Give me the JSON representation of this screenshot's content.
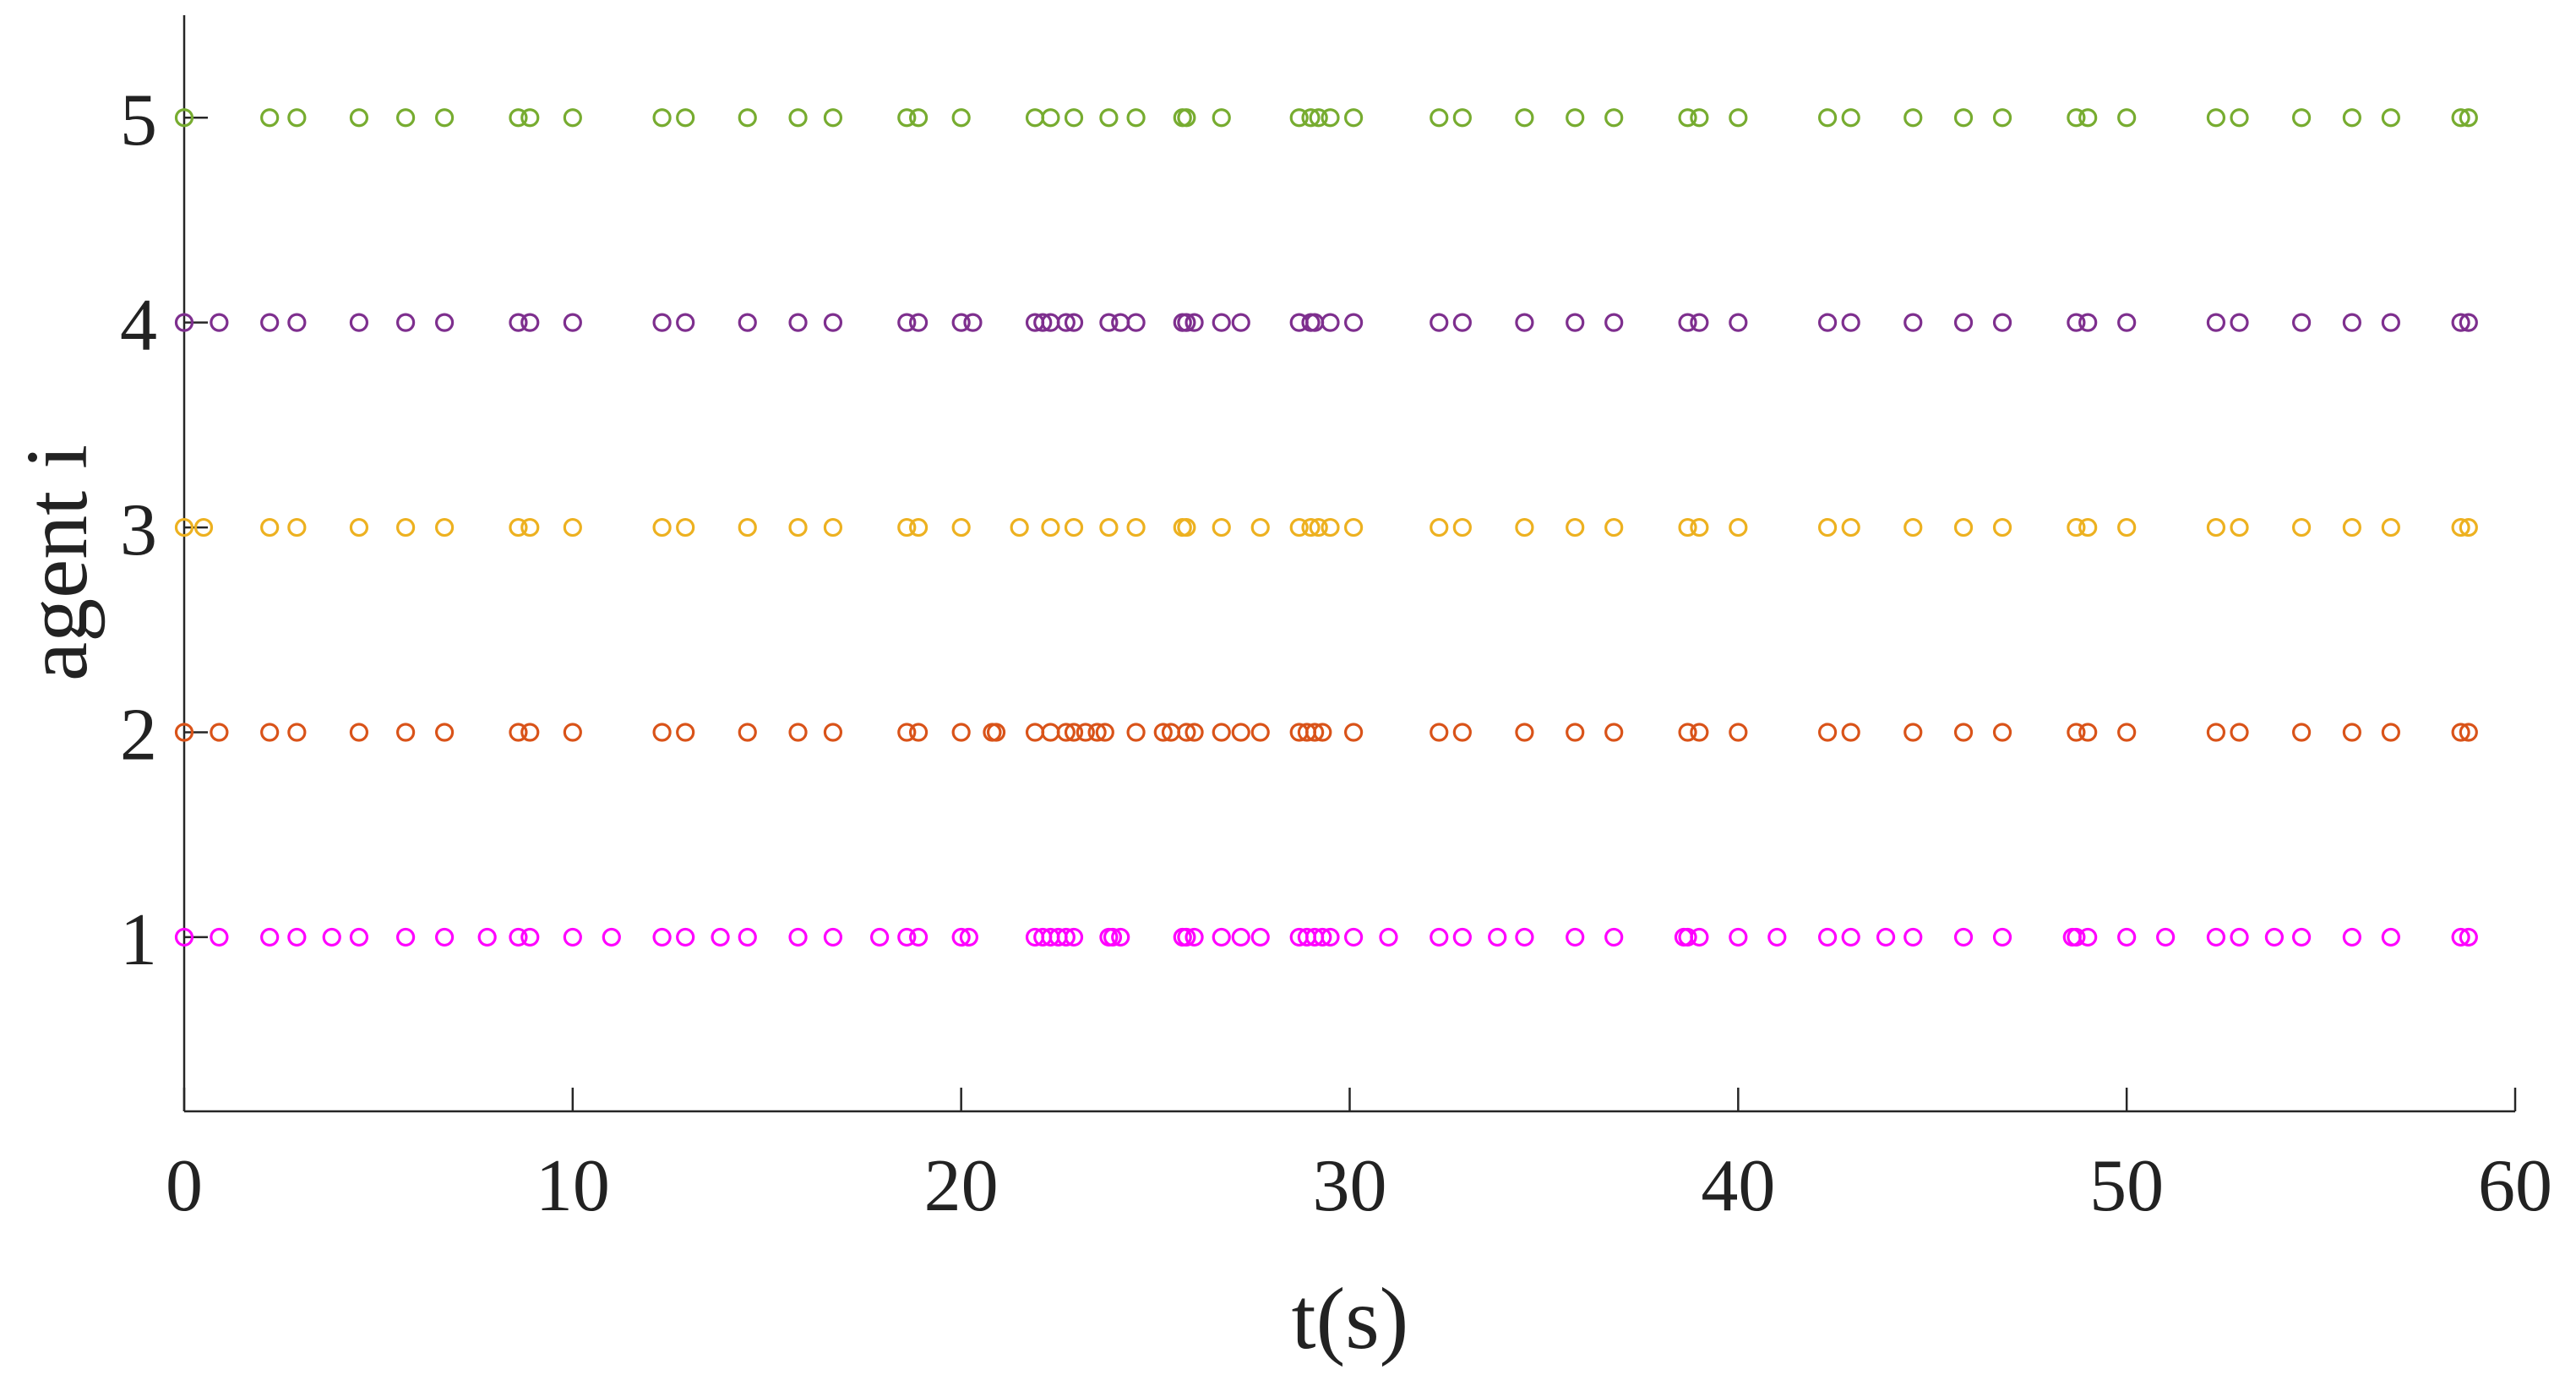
{
  "chart_data": {
    "type": "scatter",
    "title": "",
    "xlabel": "t(s)",
    "ylabel": "agent i",
    "xlim": [
      0,
      60
    ],
    "ylim": [
      0.15,
      5.5
    ],
    "grid": false,
    "x_ticks": [
      0,
      10,
      20,
      30,
      40,
      50,
      60
    ],
    "x_tick_labels": [
      "0",
      "10",
      "20",
      "30",
      "40",
      "50",
      "60"
    ],
    "y_ticks": [
      1,
      2,
      3,
      4,
      5
    ],
    "y_tick_labels": [
      "1",
      "2",
      "3",
      "4",
      "5"
    ],
    "series": [
      {
        "name": "agent 1",
        "color": "#ff00ff",
        "y": 1,
        "x": [
          0,
          0.9,
          2.2,
          2.9,
          3.8,
          4.5,
          5.7,
          6.7,
          7.8,
          8.6,
          8.9,
          10.0,
          11.0,
          12.3,
          12.9,
          13.8,
          14.5,
          15.8,
          16.7,
          17.9,
          18.6,
          18.9,
          20.0,
          20.2,
          21.9,
          22.1,
          22.3,
          22.5,
          22.7,
          22.9,
          23.8,
          23.9,
          24.1,
          25.7,
          25.8,
          26.0,
          26.7,
          27.2,
          27.7,
          28.7,
          28.9,
          29.1,
          29.3,
          29.5,
          30.1,
          31.0,
          32.3,
          32.9,
          33.8,
          34.5,
          35.8,
          36.8,
          38.6,
          38.7,
          39.0,
          40.0,
          41.0,
          42.3,
          42.9,
          43.8,
          44.5,
          45.8,
          46.8,
          48.6,
          48.7,
          49.0,
          50.0,
          51.0,
          52.3,
          52.9,
          53.8,
          54.5,
          55.8,
          56.8,
          58.6,
          58.8
        ]
      },
      {
        "name": "agent 2",
        "color": "#d95319",
        "y": 2,
        "x": [
          0,
          0.9,
          2.2,
          2.9,
          4.5,
          5.7,
          6.7,
          8.6,
          8.9,
          10.0,
          12.3,
          12.9,
          14.5,
          15.8,
          16.7,
          18.6,
          18.9,
          20.0,
          20.8,
          20.9,
          21.9,
          22.3,
          22.7,
          22.9,
          23.2,
          23.5,
          23.7,
          24.5,
          25.2,
          25.4,
          25.8,
          26.0,
          26.7,
          27.2,
          27.7,
          28.7,
          28.9,
          29.1,
          29.3,
          30.1,
          32.3,
          32.9,
          34.5,
          35.8,
          36.8,
          38.7,
          39.0,
          40.0,
          42.3,
          42.9,
          44.5,
          45.8,
          46.8,
          48.7,
          49.0,
          50.0,
          52.3,
          52.9,
          54.5,
          55.8,
          56.8,
          58.6,
          58.8
        ]
      },
      {
        "name": "agent 3",
        "color": "#edb120",
        "y": 3,
        "x": [
          0,
          0.5,
          2.2,
          2.9,
          4.5,
          5.7,
          6.7,
          8.6,
          8.9,
          10.0,
          12.3,
          12.9,
          14.5,
          15.8,
          16.7,
          18.6,
          18.9,
          20.0,
          21.5,
          22.3,
          22.9,
          23.8,
          24.5,
          25.7,
          25.8,
          26.7,
          27.7,
          28.7,
          29.0,
          29.2,
          29.5,
          30.1,
          32.3,
          32.9,
          34.5,
          35.8,
          36.8,
          38.7,
          39.0,
          40.0,
          42.3,
          42.9,
          44.5,
          45.8,
          46.8,
          48.7,
          49.0,
          50.0,
          52.3,
          52.9,
          54.5,
          55.8,
          56.8,
          58.6,
          58.8
        ]
      },
      {
        "name": "agent 4",
        "color": "#7e2f8e",
        "y": 4,
        "x": [
          0,
          0.9,
          2.2,
          2.9,
          4.5,
          5.7,
          6.7,
          8.6,
          8.9,
          10.0,
          12.3,
          12.9,
          14.5,
          15.8,
          16.7,
          18.6,
          18.9,
          20.0,
          20.3,
          21.9,
          22.1,
          22.3,
          22.7,
          22.9,
          23.8,
          24.1,
          24.5,
          25.7,
          25.8,
          26.0,
          26.7,
          27.2,
          28.7,
          29.0,
          29.1,
          29.5,
          30.1,
          32.3,
          32.9,
          34.5,
          35.8,
          36.8,
          38.7,
          39.0,
          40.0,
          42.3,
          42.9,
          44.5,
          45.8,
          46.8,
          48.7,
          49.0,
          50.0,
          52.3,
          52.9,
          54.5,
          55.8,
          56.8,
          58.6,
          58.8
        ]
      },
      {
        "name": "agent 5",
        "color": "#77ac30",
        "y": 5,
        "x": [
          0,
          2.2,
          2.9,
          4.5,
          5.7,
          6.7,
          8.6,
          8.9,
          10.0,
          12.3,
          12.9,
          14.5,
          15.8,
          16.7,
          18.6,
          18.9,
          20.0,
          21.9,
          22.3,
          22.9,
          23.8,
          24.5,
          25.7,
          25.8,
          26.7,
          28.7,
          29.0,
          29.2,
          29.5,
          30.1,
          32.3,
          32.9,
          34.5,
          35.8,
          36.8,
          38.7,
          39.0,
          40.0,
          42.3,
          42.9,
          44.5,
          45.8,
          46.8,
          48.7,
          49.0,
          50.0,
          52.3,
          52.9,
          54.5,
          55.8,
          56.8,
          58.6,
          58.8
        ]
      }
    ]
  }
}
